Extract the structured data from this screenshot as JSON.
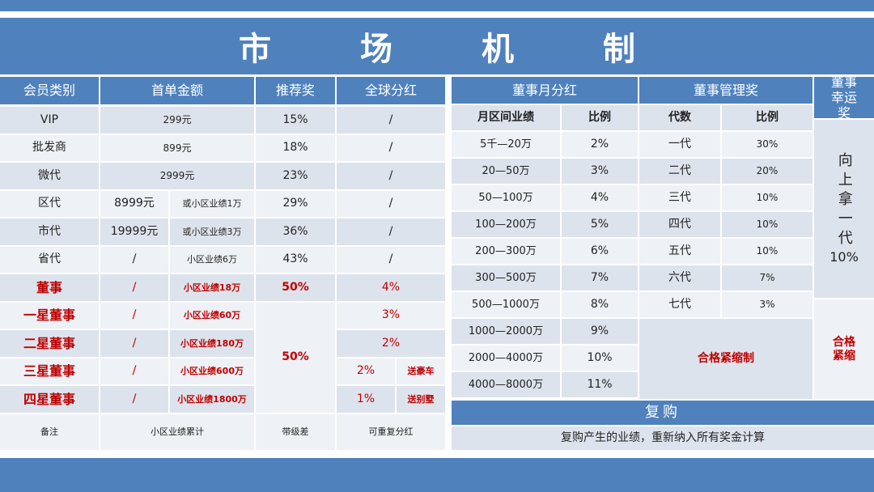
{
  "title": "市场机制",
  "member_table": {
    "headers": [
      "会员类别",
      "首单金额",
      "推荐奖",
      "全球分红"
    ],
    "rows": [
      {
        "level": "VIP",
        "amount": "299元",
        "referral": "15%",
        "dividend": "/"
      },
      {
        "level": "批发商",
        "amount": "899元",
        "referral": "18%",
        "dividend": "/"
      },
      {
        "level": "微代",
        "amount": "2999元",
        "referral": "23%",
        "dividend": "/"
      },
      {
        "level": "区代",
        "amount": "8999元",
        "condition": "或小区业绩1万",
        "referral": "29%",
        "dividend": "/"
      },
      {
        "level": "市代",
        "amount": "19999元",
        "condition": "或小区业绩3万",
        "referral": "36%",
        "dividend": "/"
      },
      {
        "level": "省代",
        "amount": "/",
        "condition": "小区业绩6万",
        "referral": "43%",
        "dividend": "/"
      },
      {
        "level": "董事",
        "amount": "/",
        "condition": "小区业绩18万",
        "referral": "50%",
        "dividend": "4%"
      },
      {
        "level": "一星董事",
        "amount": "/",
        "condition": "小区业绩60万",
        "dividend": "3%"
      },
      {
        "level": "二星董事",
        "amount": "/",
        "condition": "小区业绩180万",
        "dividend": "2%"
      },
      {
        "level": "三星董事",
        "amount": "/",
        "condition": "小区业绩600万",
        "dividend": "2%",
        "gift": "送豪车"
      },
      {
        "level": "四星董事",
        "amount": "/",
        "condition": "小区业绩1800万",
        "dividend": "1%",
        "gift": "送别墅"
      }
    ],
    "star_referral": "50%",
    "footer": [
      "备注",
      "小区业绩累计",
      "带级差",
      "可重复分红"
    ]
  },
  "monthly_dividend": {
    "title": "董事月分红",
    "headers": [
      "月区间业绩",
      "比例"
    ],
    "rows": [
      [
        "5千—20万",
        "2%"
      ],
      [
        "20—50万",
        "3%"
      ],
      [
        "50—100万",
        "4%"
      ],
      [
        "100—200万",
        "5%"
      ],
      [
        "200—300万",
        "6%"
      ],
      [
        "300—500万",
        "7%"
      ],
      [
        "500—1000万",
        "8%"
      ],
      [
        "1000—2000万",
        "9%"
      ],
      [
        "2000—4000万",
        "10%"
      ],
      [
        "4000—8000万",
        "11%"
      ]
    ]
  },
  "management": {
    "title": "董事管理奖",
    "headers": [
      "代数",
      "比例"
    ],
    "rows": [
      [
        "一代",
        "30%"
      ],
      [
        "二代",
        "20%"
      ],
      [
        "三代",
        "10%"
      ],
      [
        "四代",
        "10%"
      ],
      [
        "五代",
        "10%"
      ],
      [
        "六代",
        "7%"
      ],
      [
        "七代",
        "3%"
      ]
    ],
    "note": "合格紧缩制"
  },
  "lucky": {
    "title": "董事幸运奖",
    "body": "向上拿一代",
    "rate": "10%",
    "note": "合格紧缩"
  },
  "repurchase": {
    "title": "复购",
    "text": "复购产生的业绩，重新纳入所有奖金计算"
  }
}
